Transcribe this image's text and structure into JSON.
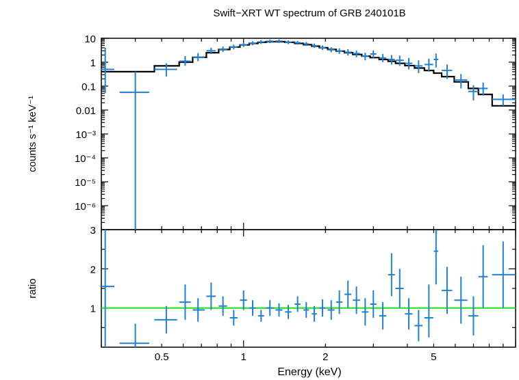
{
  "chart_data": [
    {
      "type": "scatter",
      "panel": "spectrum",
      "title": "Swift−XRT WT spectrum of GRB 240101B",
      "ylabel": "counts s⁻¹ keV⁻¹",
      "xlabel": "Energy (keV)",
      "xscale": "log",
      "yscale": "log",
      "xlim": [
        0.3,
        10
      ],
      "ylim": [
        1e-07,
        10
      ],
      "y_tick_labels": [
        "10",
        "1",
        "0.1",
        "0.01",
        "10⁻³",
        "10⁻⁴",
        "10⁻⁵",
        "10⁻⁶"
      ],
      "colors": {
        "data": "#1f7fd4",
        "model": "#000000"
      },
      "series": [
        {
          "role": "data",
          "points": [
            {
              "x": 0.31,
              "xlo": 0.3,
              "xhi": 0.335,
              "y": 0.5,
              "ylo": 0.05,
              "yhi": 4.0
            },
            {
              "x": 0.4,
              "xlo": 0.35,
              "xhi": 0.45,
              "y": 0.055,
              "ylo": 1e-07,
              "yhi": 0.4
            },
            {
              "x": 0.52,
              "xlo": 0.47,
              "xhi": 0.57,
              "y": 0.5,
              "ylo": 0.25,
              "yhi": 0.9
            },
            {
              "x": 0.61,
              "xlo": 0.58,
              "xhi": 0.64,
              "y": 1.1,
              "ylo": 0.7,
              "yhi": 1.8
            },
            {
              "x": 0.68,
              "xlo": 0.65,
              "xhi": 0.72,
              "y": 1.6,
              "ylo": 1.1,
              "yhi": 2.4
            },
            {
              "x": 0.76,
              "xlo": 0.73,
              "xhi": 0.79,
              "y": 3.0,
              "ylo": 2.2,
              "yhi": 4.0
            },
            {
              "x": 0.84,
              "xlo": 0.81,
              "xhi": 0.87,
              "y": 3.5,
              "ylo": 2.7,
              "yhi": 4.5
            },
            {
              "x": 0.92,
              "xlo": 0.89,
              "xhi": 0.95,
              "y": 4.3,
              "ylo": 3.4,
              "yhi": 5.4
            },
            {
              "x": 1.0,
              "xlo": 0.97,
              "xhi": 1.03,
              "y": 5.3,
              "ylo": 4.3,
              "yhi": 6.5
            },
            {
              "x": 1.08,
              "xlo": 1.05,
              "xhi": 1.11,
              "y": 6.2,
              "ylo": 5.1,
              "yhi": 7.5
            },
            {
              "x": 1.16,
              "xlo": 1.13,
              "xhi": 1.19,
              "y": 7.0,
              "ylo": 5.8,
              "yhi": 8.4
            },
            {
              "x": 1.25,
              "xlo": 1.21,
              "xhi": 1.29,
              "y": 7.5,
              "ylo": 6.3,
              "yhi": 8.9
            },
            {
              "x": 1.35,
              "xlo": 1.31,
              "xhi": 1.39,
              "y": 7.6,
              "ylo": 6.4,
              "yhi": 9.0
            },
            {
              "x": 1.46,
              "xlo": 1.42,
              "xhi": 1.5,
              "y": 6.8,
              "ylo": 5.7,
              "yhi": 8.1
            },
            {
              "x": 1.58,
              "xlo": 1.54,
              "xhi": 1.62,
              "y": 6.5,
              "ylo": 5.4,
              "yhi": 7.8
            },
            {
              "x": 1.7,
              "xlo": 1.66,
              "xhi": 1.74,
              "y": 5.8,
              "ylo": 4.8,
              "yhi": 7.0
            },
            {
              "x": 1.82,
              "xlo": 1.78,
              "xhi": 1.86,
              "y": 4.9,
              "ylo": 4.0,
              "yhi": 6.0
            },
            {
              "x": 1.95,
              "xlo": 1.9,
              "xhi": 2.0,
              "y": 4.0,
              "ylo": 3.2,
              "yhi": 5.0
            },
            {
              "x": 2.1,
              "xlo": 2.04,
              "xhi": 2.16,
              "y": 3.3,
              "ylo": 2.6,
              "yhi": 4.2
            },
            {
              "x": 2.25,
              "xlo": 2.19,
              "xhi": 2.31,
              "y": 2.9,
              "ylo": 2.2,
              "yhi": 3.8
            },
            {
              "x": 2.42,
              "xlo": 2.35,
              "xhi": 2.49,
              "y": 2.6,
              "ylo": 1.9,
              "yhi": 3.5
            },
            {
              "x": 2.6,
              "xlo": 2.52,
              "xhi": 2.68,
              "y": 2.3,
              "ylo": 1.6,
              "yhi": 3.1
            },
            {
              "x": 2.8,
              "xlo": 2.72,
              "xhi": 2.88,
              "y": 1.8,
              "ylo": 1.2,
              "yhi": 2.5
            },
            {
              "x": 3.0,
              "xlo": 2.92,
              "xhi": 3.08,
              "y": 2.2,
              "ylo": 1.5,
              "yhi": 3.1
            },
            {
              "x": 3.25,
              "xlo": 3.15,
              "xhi": 3.35,
              "y": 1.5,
              "ylo": 1.0,
              "yhi": 2.2
            },
            {
              "x": 3.5,
              "xlo": 3.4,
              "xhi": 3.6,
              "y": 1.3,
              "ylo": 0.8,
              "yhi": 2.0
            },
            {
              "x": 3.75,
              "xlo": 3.62,
              "xhi": 3.88,
              "y": 1.2,
              "ylo": 0.7,
              "yhi": 1.9
            },
            {
              "x": 4.05,
              "xlo": 3.92,
              "xhi": 4.18,
              "y": 0.9,
              "ylo": 0.5,
              "yhi": 1.5
            },
            {
              "x": 4.4,
              "xlo": 4.25,
              "xhi": 4.55,
              "y": 0.7,
              "ylo": 0.35,
              "yhi": 1.2
            },
            {
              "x": 4.8,
              "xlo": 4.62,
              "xhi": 4.98,
              "y": 0.8,
              "ylo": 0.4,
              "yhi": 1.4
            },
            {
              "x": 5.1,
              "xlo": 5.0,
              "xhi": 5.2,
              "y": 1.3,
              "ylo": 0.6,
              "yhi": 2.3
            },
            {
              "x": 5.6,
              "xlo": 5.35,
              "xhi": 5.85,
              "y": 0.45,
              "ylo": 0.2,
              "yhi": 0.8
            },
            {
              "x": 6.3,
              "xlo": 5.95,
              "xhi": 6.65,
              "y": 0.18,
              "ylo": 0.08,
              "yhi": 0.32
            },
            {
              "x": 7.0,
              "xlo": 6.7,
              "xhi": 7.3,
              "y": 0.06,
              "ylo": 0.025,
              "yhi": 0.11
            },
            {
              "x": 7.6,
              "xlo": 7.3,
              "xhi": 7.9,
              "y": 0.08,
              "ylo": 0.04,
              "yhi": 0.14
            },
            {
              "x": 9.0,
              "xlo": 8.2,
              "xhi": 10.0,
              "y": 0.028,
              "ylo": 0.015,
              "yhi": 0.045
            }
          ]
        },
        {
          "role": "model",
          "steps": [
            {
              "x0": 0.3,
              "x1": 0.33,
              "y": 0.4
            },
            {
              "x0": 0.33,
              "x1": 0.47,
              "y": 0.4
            },
            {
              "x0": 0.47,
              "x1": 0.58,
              "y": 0.7
            },
            {
              "x0": 0.58,
              "x1": 0.65,
              "y": 1.0
            },
            {
              "x0": 0.65,
              "x1": 0.73,
              "y": 1.6
            },
            {
              "x0": 0.73,
              "x1": 0.81,
              "y": 2.5
            },
            {
              "x0": 0.81,
              "x1": 0.89,
              "y": 3.4
            },
            {
              "x0": 0.89,
              "x1": 0.97,
              "y": 4.3
            },
            {
              "x0": 0.97,
              "x1": 1.05,
              "y": 5.3
            },
            {
              "x0": 1.05,
              "x1": 1.13,
              "y": 6.1
            },
            {
              "x0": 1.13,
              "x1": 1.21,
              "y": 6.8
            },
            {
              "x0": 1.21,
              "x1": 1.31,
              "y": 7.2
            },
            {
              "x0": 1.31,
              "x1": 1.42,
              "y": 7.2
            },
            {
              "x0": 1.42,
              "x1": 1.54,
              "y": 6.8
            },
            {
              "x0": 1.54,
              "x1": 1.66,
              "y": 6.1
            },
            {
              "x0": 1.66,
              "x1": 1.78,
              "y": 5.4
            },
            {
              "x0": 1.78,
              "x1": 1.9,
              "y": 4.7
            },
            {
              "x0": 1.9,
              "x1": 2.04,
              "y": 4.0
            },
            {
              "x0": 2.04,
              "x1": 2.19,
              "y": 3.4
            },
            {
              "x0": 2.19,
              "x1": 2.35,
              "y": 2.9
            },
            {
              "x0": 2.35,
              "x1": 2.52,
              "y": 2.5
            },
            {
              "x0": 2.52,
              "x1": 2.72,
              "y": 2.1
            },
            {
              "x0": 2.72,
              "x1": 2.92,
              "y": 1.8
            },
            {
              "x0": 2.92,
              "x1": 3.15,
              "y": 1.55
            },
            {
              "x0": 3.15,
              "x1": 3.4,
              "y": 1.3
            },
            {
              "x0": 3.4,
              "x1": 3.62,
              "y": 1.1
            },
            {
              "x0": 3.62,
              "x1": 3.92,
              "y": 0.9
            },
            {
              "x0": 3.92,
              "x1": 4.25,
              "y": 0.72
            },
            {
              "x0": 4.25,
              "x1": 4.62,
              "y": 0.57
            },
            {
              "x0": 4.62,
              "x1": 5.0,
              "y": 0.45
            },
            {
              "x0": 5.0,
              "x1": 5.35,
              "y": 0.35
            },
            {
              "x0": 5.35,
              "x1": 5.95,
              "y": 0.25
            },
            {
              "x0": 5.95,
              "x1": 6.7,
              "y": 0.15
            },
            {
              "x0": 6.7,
              "x1": 7.3,
              "y": 0.08
            },
            {
              "x0": 7.3,
              "x1": 8.2,
              "y": 0.045
            },
            {
              "x0": 8.2,
              "x1": 10.0,
              "y": 0.015
            }
          ]
        }
      ]
    },
    {
      "type": "scatter",
      "panel": "ratio",
      "ylabel": "ratio",
      "xlabel": "Energy (keV)",
      "xscale": "log",
      "xlim": [
        0.3,
        10
      ],
      "ylim": [
        0,
        3
      ],
      "y_tick_labels": [
        "1",
        "2",
        "3"
      ],
      "x_tick_labels": [
        "0.5",
        "1",
        "2",
        "5"
      ],
      "reference_line": {
        "y": 1,
        "color": "#22e01a"
      },
      "colors": {
        "data": "#1f7fd4"
      },
      "series": [
        {
          "role": "data",
          "points": [
            {
              "x": 0.31,
              "xlo": 0.3,
              "xhi": 0.335,
              "y": 1.55,
              "ylo": 0.0,
              "yhi": 3.0
            },
            {
              "x": 0.4,
              "xlo": 0.35,
              "xhi": 0.45,
              "y": 0.1,
              "ylo": 0.0,
              "yhi": 0.6
            },
            {
              "x": 0.52,
              "xlo": 0.47,
              "xhi": 0.57,
              "y": 0.7,
              "ylo": 0.35,
              "yhi": 1.05
            },
            {
              "x": 0.61,
              "xlo": 0.58,
              "xhi": 0.64,
              "y": 1.15,
              "ylo": 0.7,
              "yhi": 1.6
            },
            {
              "x": 0.68,
              "xlo": 0.65,
              "xhi": 0.72,
              "y": 0.95,
              "ylo": 0.65,
              "yhi": 1.25
            },
            {
              "x": 0.76,
              "xlo": 0.73,
              "xhi": 0.79,
              "y": 1.3,
              "ylo": 0.95,
              "yhi": 1.65
            },
            {
              "x": 0.84,
              "xlo": 0.81,
              "xhi": 0.87,
              "y": 1.05,
              "ylo": 0.8,
              "yhi": 1.3
            },
            {
              "x": 0.92,
              "xlo": 0.89,
              "xhi": 0.95,
              "y": 0.75,
              "ylo": 0.55,
              "yhi": 0.95
            },
            {
              "x": 1.0,
              "xlo": 0.97,
              "xhi": 1.03,
              "y": 1.2,
              "ylo": 0.95,
              "yhi": 1.45
            },
            {
              "x": 1.08,
              "xlo": 1.05,
              "xhi": 1.11,
              "y": 1.0,
              "ylo": 0.8,
              "yhi": 1.2
            },
            {
              "x": 1.16,
              "xlo": 1.13,
              "xhi": 1.19,
              "y": 0.8,
              "ylo": 0.65,
              "yhi": 0.95
            },
            {
              "x": 1.25,
              "xlo": 1.21,
              "xhi": 1.29,
              "y": 1.0,
              "ylo": 0.8,
              "yhi": 1.2
            },
            {
              "x": 1.35,
              "xlo": 1.31,
              "xhi": 1.39,
              "y": 0.95,
              "ylo": 0.78,
              "yhi": 1.12
            },
            {
              "x": 1.46,
              "xlo": 1.42,
              "xhi": 1.5,
              "y": 0.9,
              "ylo": 0.72,
              "yhi": 1.08
            },
            {
              "x": 1.58,
              "xlo": 1.54,
              "xhi": 1.62,
              "y": 1.1,
              "ylo": 0.9,
              "yhi": 1.3
            },
            {
              "x": 1.7,
              "xlo": 1.66,
              "xhi": 1.74,
              "y": 0.95,
              "ylo": 0.75,
              "yhi": 1.15
            },
            {
              "x": 1.82,
              "xlo": 1.78,
              "xhi": 1.86,
              "y": 0.85,
              "ylo": 0.65,
              "yhi": 1.05
            },
            {
              "x": 1.95,
              "xlo": 1.9,
              "xhi": 2.0,
              "y": 1.0,
              "ylo": 0.78,
              "yhi": 1.22
            },
            {
              "x": 2.1,
              "xlo": 2.04,
              "xhi": 2.16,
              "y": 0.95,
              "ylo": 0.7,
              "yhi": 1.2
            },
            {
              "x": 2.25,
              "xlo": 2.19,
              "xhi": 2.31,
              "y": 1.15,
              "ylo": 0.85,
              "yhi": 1.45
            },
            {
              "x": 2.42,
              "xlo": 2.35,
              "xhi": 2.49,
              "y": 1.35,
              "ylo": 1.0,
              "yhi": 1.7
            },
            {
              "x": 2.6,
              "xlo": 2.52,
              "xhi": 2.68,
              "y": 1.2,
              "ylo": 0.85,
              "yhi": 1.55
            },
            {
              "x": 2.8,
              "xlo": 2.72,
              "xhi": 2.88,
              "y": 0.9,
              "ylo": 0.55,
              "yhi": 1.25
            },
            {
              "x": 3.0,
              "xlo": 2.92,
              "xhi": 3.08,
              "y": 1.1,
              "ylo": 0.75,
              "yhi": 1.45
            },
            {
              "x": 3.25,
              "xlo": 3.15,
              "xhi": 3.35,
              "y": 0.8,
              "ylo": 0.45,
              "yhi": 1.15
            },
            {
              "x": 3.5,
              "xlo": 3.4,
              "xhi": 3.6,
              "y": 1.85,
              "ylo": 1.3,
              "yhi": 2.4
            },
            {
              "x": 3.75,
              "xlo": 3.62,
              "xhi": 3.88,
              "y": 1.5,
              "ylo": 1.0,
              "yhi": 2.0
            },
            {
              "x": 4.05,
              "xlo": 3.92,
              "xhi": 4.18,
              "y": 0.85,
              "ylo": 0.45,
              "yhi": 1.25
            },
            {
              "x": 4.4,
              "xlo": 4.25,
              "xhi": 4.55,
              "y": 0.55,
              "ylo": 0.15,
              "yhi": 0.95
            },
            {
              "x": 4.8,
              "xlo": 4.62,
              "xhi": 4.98,
              "y": 0.75,
              "ylo": 0.25,
              "yhi": 1.6
            },
            {
              "x": 5.1,
              "xlo": 5.0,
              "xhi": 5.2,
              "y": 2.45,
              "ylo": 1.6,
              "yhi": 3.0
            },
            {
              "x": 5.6,
              "xlo": 5.35,
              "xhi": 5.85,
              "y": 1.45,
              "ylo": 0.85,
              "yhi": 2.05
            },
            {
              "x": 6.3,
              "xlo": 5.95,
              "xhi": 6.65,
              "y": 1.2,
              "ylo": 0.6,
              "yhi": 1.8
            },
            {
              "x": 7.0,
              "xlo": 6.7,
              "xhi": 7.3,
              "y": 0.8,
              "ylo": 0.3,
              "yhi": 1.3
            },
            {
              "x": 7.6,
              "xlo": 7.3,
              "xhi": 7.9,
              "y": 1.8,
              "ylo": 1.0,
              "yhi": 2.6
            },
            {
              "x": 9.0,
              "xlo": 8.2,
              "xhi": 10.0,
              "y": 1.85,
              "ylo": 1.0,
              "yhi": 2.7
            }
          ]
        }
      ]
    }
  ]
}
